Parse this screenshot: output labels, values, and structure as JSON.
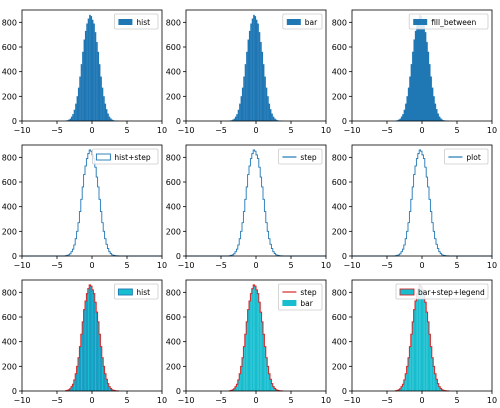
{
  "colors": {
    "blue": "#1f77b4",
    "red": "#d62728",
    "cyan": "#17becf",
    "axis": "#000000",
    "legend_frame": "#cccccc"
  },
  "chart_data": [
    {
      "type": "bar",
      "render": "hist",
      "xlim": [
        -10,
        10
      ],
      "ylim": [
        0,
        900
      ],
      "xticks": [
        -10,
        -5,
        0,
        5,
        10
      ],
      "yticks": [
        0,
        200,
        400,
        600,
        800
      ],
      "legend": [
        {
          "label": "hist",
          "style": "fill",
          "color": "blue"
        }
      ],
      "x": [
        -3.7,
        -3.5,
        -3.3,
        -3.1,
        -2.9,
        -2.7,
        -2.5,
        -2.3,
        -2.1,
        -1.9,
        -1.7,
        -1.5,
        -1.3,
        -1.1,
        -0.9,
        -0.7,
        -0.5,
        -0.3,
        -0.1,
        0.1,
        0.3,
        0.5,
        0.7,
        0.9,
        1.1,
        1.3,
        1.5,
        1.7,
        1.9,
        2.1,
        2.3,
        2.5,
        2.7,
        2.9,
        3.1,
        3.3,
        3.5,
        3.7
      ],
      "values": [
        2,
        5,
        10,
        18,
        35,
        55,
        90,
        140,
        200,
        270,
        360,
        460,
        560,
        660,
        730,
        790,
        830,
        860,
        850,
        820,
        790,
        720,
        640,
        560,
        460,
        360,
        270,
        200,
        140,
        95,
        60,
        35,
        20,
        10,
        5,
        3,
        1,
        1
      ]
    },
    {
      "type": "bar",
      "render": "bar",
      "xlim": [
        -10,
        10
      ],
      "ylim": [
        0,
        900
      ],
      "xticks": [
        -10,
        -5,
        0,
        5,
        10
      ],
      "yticks": [
        0,
        200,
        400,
        600,
        800
      ],
      "legend": [
        {
          "label": "bar",
          "style": "fill",
          "color": "blue"
        }
      ],
      "x": [
        -3.7,
        -3.5,
        -3.3,
        -3.1,
        -2.9,
        -2.7,
        -2.5,
        -2.3,
        -2.1,
        -1.9,
        -1.7,
        -1.5,
        -1.3,
        -1.1,
        -0.9,
        -0.7,
        -0.5,
        -0.3,
        -0.1,
        0.1,
        0.3,
        0.5,
        0.7,
        0.9,
        1.1,
        1.3,
        1.5,
        1.7,
        1.9,
        2.1,
        2.3,
        2.5,
        2.7,
        2.9,
        3.1,
        3.3,
        3.5,
        3.7
      ],
      "values": [
        2,
        5,
        10,
        18,
        35,
        55,
        90,
        140,
        200,
        270,
        360,
        460,
        560,
        660,
        730,
        790,
        830,
        860,
        850,
        820,
        790,
        720,
        640,
        560,
        460,
        360,
        270,
        200,
        140,
        95,
        60,
        35,
        20,
        10,
        5,
        3,
        1,
        1
      ]
    },
    {
      "type": "area",
      "render": "fill",
      "xlim": [
        -10,
        10
      ],
      "ylim": [
        0,
        900
      ],
      "xticks": [
        -10,
        -5,
        0,
        5,
        10
      ],
      "yticks": [
        0,
        200,
        400,
        600,
        800
      ],
      "legend": [
        {
          "label": "fill_between",
          "style": "fill",
          "color": "blue"
        }
      ],
      "x": [
        -3.7,
        -3.5,
        -3.3,
        -3.1,
        -2.9,
        -2.7,
        -2.5,
        -2.3,
        -2.1,
        -1.9,
        -1.7,
        -1.5,
        -1.3,
        -1.1,
        -0.9,
        -0.7,
        -0.5,
        -0.3,
        -0.1,
        0.1,
        0.3,
        0.5,
        0.7,
        0.9,
        1.1,
        1.3,
        1.5,
        1.7,
        1.9,
        2.1,
        2.3,
        2.5,
        2.7,
        2.9,
        3.1,
        3.3,
        3.5,
        3.7
      ],
      "values": [
        2,
        5,
        10,
        18,
        35,
        55,
        90,
        140,
        200,
        270,
        360,
        460,
        560,
        660,
        730,
        790,
        830,
        860,
        850,
        820,
        790,
        720,
        640,
        560,
        460,
        360,
        270,
        200,
        140,
        95,
        60,
        35,
        20,
        10,
        5,
        3,
        1,
        1
      ]
    },
    {
      "type": "line",
      "render": "step",
      "xlim": [
        -10,
        10
      ],
      "ylim": [
        0,
        900
      ],
      "xticks": [
        -10,
        -5,
        0,
        5,
        10
      ],
      "yticks": [
        0,
        200,
        400,
        600,
        800
      ],
      "legend": [
        {
          "label": "hist+step",
          "style": "box",
          "color": "blue"
        }
      ],
      "x": [
        -3.7,
        -3.5,
        -3.3,
        -3.1,
        -2.9,
        -2.7,
        -2.5,
        -2.3,
        -2.1,
        -1.9,
        -1.7,
        -1.5,
        -1.3,
        -1.1,
        -0.9,
        -0.7,
        -0.5,
        -0.3,
        -0.1,
        0.1,
        0.3,
        0.5,
        0.7,
        0.9,
        1.1,
        1.3,
        1.5,
        1.7,
        1.9,
        2.1,
        2.3,
        2.5,
        2.7,
        2.9,
        3.1,
        3.3,
        3.5,
        3.7
      ],
      "values": [
        2,
        5,
        10,
        18,
        35,
        55,
        90,
        140,
        200,
        270,
        360,
        460,
        560,
        660,
        730,
        790,
        830,
        860,
        850,
        820,
        790,
        720,
        640,
        560,
        460,
        360,
        270,
        200,
        140,
        95,
        60,
        35,
        20,
        10,
        5,
        3,
        1,
        1
      ]
    },
    {
      "type": "line",
      "render": "step",
      "xlim": [
        -10,
        10
      ],
      "ylim": [
        0,
        900
      ],
      "xticks": [
        -10,
        -5,
        0,
        5,
        10
      ],
      "yticks": [
        0,
        200,
        400,
        600,
        800
      ],
      "legend": [
        {
          "label": "step",
          "style": "line",
          "color": "blue"
        }
      ],
      "x": [
        -3.7,
        -3.5,
        -3.3,
        -3.1,
        -2.9,
        -2.7,
        -2.5,
        -2.3,
        -2.1,
        -1.9,
        -1.7,
        -1.5,
        -1.3,
        -1.1,
        -0.9,
        -0.7,
        -0.5,
        -0.3,
        -0.1,
        0.1,
        0.3,
        0.5,
        0.7,
        0.9,
        1.1,
        1.3,
        1.5,
        1.7,
        1.9,
        2.1,
        2.3,
        2.5,
        2.7,
        2.9,
        3.1,
        3.3,
        3.5,
        3.7
      ],
      "values": [
        2,
        5,
        10,
        18,
        35,
        55,
        90,
        140,
        200,
        270,
        360,
        460,
        560,
        660,
        730,
        790,
        830,
        860,
        850,
        820,
        790,
        720,
        640,
        560,
        460,
        360,
        270,
        200,
        140,
        95,
        60,
        35,
        20,
        10,
        5,
        3,
        1,
        1
      ]
    },
    {
      "type": "line",
      "render": "step",
      "xlim": [
        -10,
        10
      ],
      "ylim": [
        0,
        900
      ],
      "xticks": [
        -10,
        -5,
        0,
        5,
        10
      ],
      "yticks": [
        0,
        200,
        400,
        600,
        800
      ],
      "legend": [
        {
          "label": "plot",
          "style": "line",
          "color": "blue"
        }
      ],
      "x": [
        -3.7,
        -3.5,
        -3.3,
        -3.1,
        -2.9,
        -2.7,
        -2.5,
        -2.3,
        -2.1,
        -1.9,
        -1.7,
        -1.5,
        -1.3,
        -1.1,
        -0.9,
        -0.7,
        -0.5,
        -0.3,
        -0.1,
        0.1,
        0.3,
        0.5,
        0.7,
        0.9,
        1.1,
        1.3,
        1.5,
        1.7,
        1.9,
        2.1,
        2.3,
        2.5,
        2.7,
        2.9,
        3.1,
        3.3,
        3.5,
        3.7
      ],
      "values": [
        2,
        5,
        10,
        18,
        35,
        55,
        90,
        140,
        200,
        270,
        360,
        460,
        560,
        660,
        730,
        790,
        830,
        860,
        850,
        820,
        790,
        720,
        640,
        560,
        460,
        360,
        270,
        200,
        140,
        95,
        60,
        35,
        20,
        10,
        5,
        3,
        1,
        1
      ]
    },
    {
      "type": "bar",
      "render": "hist-outlined",
      "xlim": [
        -10,
        10
      ],
      "ylim": [
        0,
        900
      ],
      "xticks": [
        -10,
        -5,
        0,
        5,
        10
      ],
      "yticks": [
        0,
        200,
        400,
        600,
        800
      ],
      "legend": [
        {
          "label": "hist",
          "style": "fill",
          "color": "cyan",
          "edge": "blue"
        }
      ],
      "x": [
        -3.7,
        -3.5,
        -3.3,
        -3.1,
        -2.9,
        -2.7,
        -2.5,
        -2.3,
        -2.1,
        -1.9,
        -1.7,
        -1.5,
        -1.3,
        -1.1,
        -0.9,
        -0.7,
        -0.5,
        -0.3,
        -0.1,
        0.1,
        0.3,
        0.5,
        0.7,
        0.9,
        1.1,
        1.3,
        1.5,
        1.7,
        1.9,
        2.1,
        2.3,
        2.5,
        2.7,
        2.9,
        3.1,
        3.3,
        3.5,
        3.7
      ],
      "values": [
        2,
        5,
        10,
        18,
        35,
        55,
        90,
        140,
        200,
        270,
        360,
        460,
        560,
        660,
        730,
        790,
        830,
        860,
        850,
        820,
        790,
        720,
        640,
        560,
        460,
        360,
        270,
        200,
        140,
        95,
        60,
        35,
        20,
        10,
        5,
        3,
        1,
        1
      ]
    },
    {
      "type": "bar",
      "render": "bar+step",
      "xlim": [
        -10,
        10
      ],
      "ylim": [
        0,
        900
      ],
      "xticks": [
        -10,
        -5,
        0,
        5,
        10
      ],
      "yticks": [
        0,
        200,
        400,
        600,
        800
      ],
      "legend": [
        {
          "label": "step",
          "style": "line",
          "color": "red"
        },
        {
          "label": "bar",
          "style": "fill",
          "color": "cyan"
        }
      ],
      "x": [
        -3.7,
        -3.5,
        -3.3,
        -3.1,
        -2.9,
        -2.7,
        -2.5,
        -2.3,
        -2.1,
        -1.9,
        -1.7,
        -1.5,
        -1.3,
        -1.1,
        -0.9,
        -0.7,
        -0.5,
        -0.3,
        -0.1,
        0.1,
        0.3,
        0.5,
        0.7,
        0.9,
        1.1,
        1.3,
        1.5,
        1.7,
        1.9,
        2.1,
        2.3,
        2.5,
        2.7,
        2.9,
        3.1,
        3.3,
        3.5,
        3.7
      ],
      "values": [
        2,
        5,
        10,
        18,
        35,
        55,
        90,
        140,
        200,
        270,
        360,
        460,
        560,
        660,
        730,
        790,
        830,
        860,
        850,
        820,
        790,
        720,
        640,
        560,
        460,
        360,
        270,
        200,
        140,
        95,
        60,
        35,
        20,
        10,
        5,
        3,
        1,
        1
      ]
    },
    {
      "type": "bar",
      "render": "bar+step",
      "xlim": [
        -10,
        10
      ],
      "ylim": [
        0,
        900
      ],
      "xticks": [
        -10,
        -5,
        0,
        5,
        10
      ],
      "yticks": [
        0,
        200,
        400,
        600,
        800
      ],
      "legend": [
        {
          "label": "bar+step+legend",
          "style": "fill",
          "color": "cyan",
          "edge": "red"
        }
      ],
      "x": [
        -3.7,
        -3.5,
        -3.3,
        -3.1,
        -2.9,
        -2.7,
        -2.5,
        -2.3,
        -2.1,
        -1.9,
        -1.7,
        -1.5,
        -1.3,
        -1.1,
        -0.9,
        -0.7,
        -0.5,
        -0.3,
        -0.1,
        0.1,
        0.3,
        0.5,
        0.7,
        0.9,
        1.1,
        1.3,
        1.5,
        1.7,
        1.9,
        2.1,
        2.3,
        2.5,
        2.7,
        2.9,
        3.1,
        3.3,
        3.5,
        3.7
      ],
      "values": [
        2,
        5,
        10,
        18,
        35,
        55,
        90,
        140,
        200,
        270,
        360,
        460,
        560,
        660,
        730,
        790,
        830,
        860,
        850,
        820,
        790,
        720,
        640,
        560,
        460,
        360,
        270,
        200,
        140,
        95,
        60,
        35,
        20,
        10,
        5,
        3,
        1,
        1
      ]
    }
  ]
}
